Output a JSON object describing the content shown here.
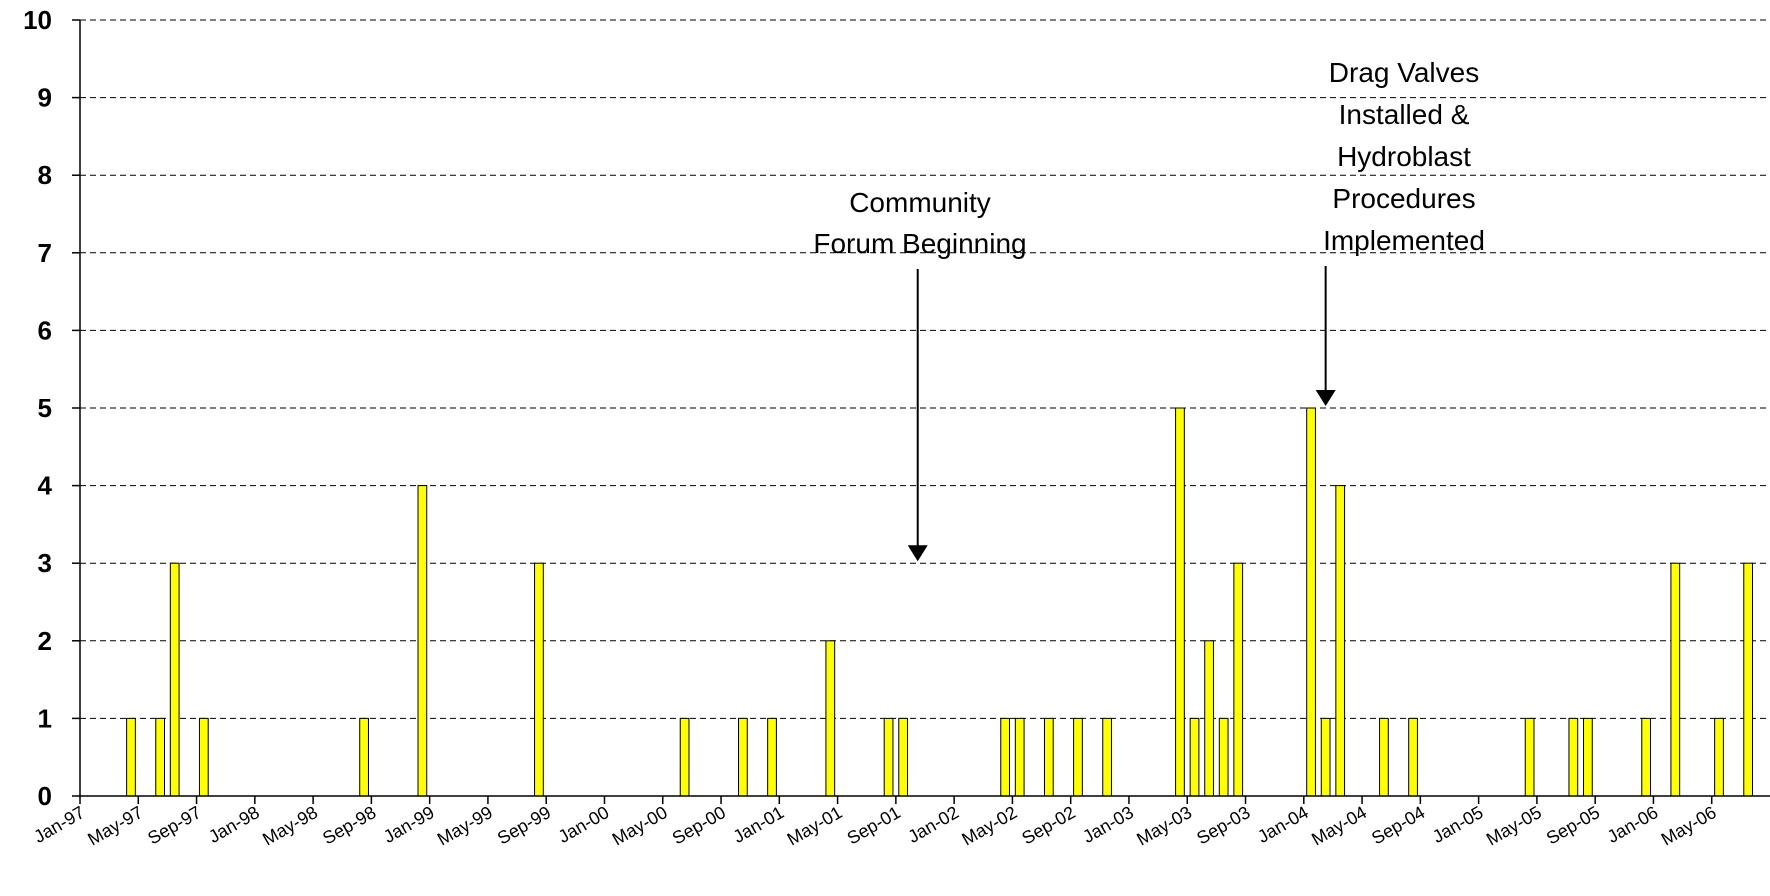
{
  "chart_data": {
    "type": "bar",
    "x_tick_labels": [
      "Jan-97",
      "May-97",
      "Sep-97",
      "Jan-98",
      "May-98",
      "Sep-98",
      "Jan-99",
      "May-99",
      "Sep-99",
      "Jan-00",
      "May-00",
      "Sep-00",
      "Jan-01",
      "May-01",
      "Sep-01",
      "Jan-02",
      "May-02",
      "Sep-02",
      "Jan-03",
      "May-03",
      "Sep-03",
      "Jan-04",
      "May-04",
      "Sep-04",
      "Jan-05",
      "May-05",
      "Sep-05",
      "Jan-06",
      "May-06"
    ],
    "y_tick_labels": [
      "0",
      "1",
      "2",
      "3",
      "4",
      "5",
      "6",
      "7",
      "8",
      "9",
      "10"
    ],
    "ylim": [
      0,
      10
    ],
    "xlim": [
      "Jan-97",
      "Aug-06"
    ],
    "grid": "horizontal dashed",
    "bar_color": "#ffff00",
    "bar_edge_color": "#000000",
    "series": [
      {
        "x": [
          "Apr-97",
          "Jun-97",
          "Jul-97",
          "Sep-97",
          "Aug-98",
          "Dec-98",
          "Aug-99",
          "Jun-00",
          "Oct-00",
          "Dec-00",
          "Apr-01",
          "Aug-01",
          "Sep-01",
          "Apr-02",
          "May-02",
          "Jul-02",
          "Sep-02",
          "Nov-02",
          "Apr-03",
          "May-03",
          "Jun-03",
          "Jul-03",
          "Aug-03",
          "Jan-04",
          "Feb-04",
          "Mar-04",
          "Jun-04",
          "Aug-04",
          "Apr-05",
          "Jul-05",
          "Aug-05",
          "Dec-05",
          "Feb-06",
          "May-06",
          "Jul-06"
        ],
        "values": [
          1,
          1,
          3,
          1,
          1,
          4,
          3,
          1,
          1,
          1,
          2,
          1,
          1,
          1,
          1,
          1,
          1,
          1,
          5,
          1,
          2,
          1,
          3,
          5,
          1,
          4,
          1,
          1,
          1,
          1,
          1,
          1,
          3,
          1,
          3
        ]
      }
    ],
    "annotations": [
      {
        "lines": [
          "Community",
          "Forum Beginning"
        ],
        "arrow_to": {
          "x": "Oct-01",
          "y": 3
        }
      },
      {
        "lines": [
          "Drag Valves",
          "Installed &",
          "Hydroblast",
          "Procedures",
          "Implemented"
        ],
        "arrow_to": {
          "x": "Feb-04",
          "y": 5
        }
      }
    ]
  }
}
